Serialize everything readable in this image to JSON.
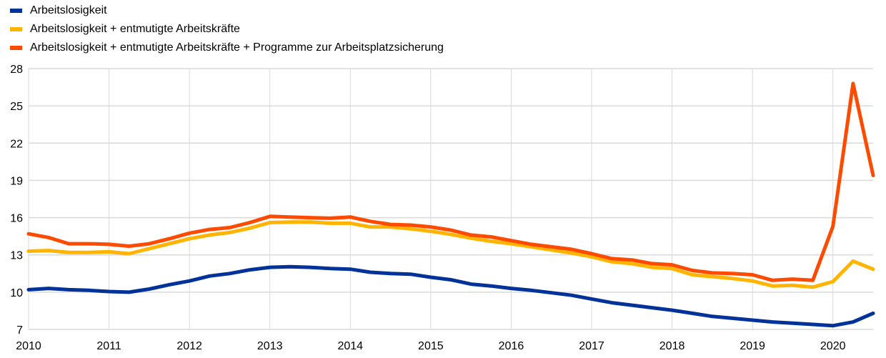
{
  "chart_data": {
    "type": "line",
    "title": "",
    "xlabel": "",
    "ylabel": "",
    "x_start": 2010,
    "x_step_years": 0.25,
    "xlim": [
      2010,
      2020.5
    ],
    "ylim": [
      7,
      28
    ],
    "x_ticks": [
      "2010",
      "2011",
      "2012",
      "2013",
      "2014",
      "2015",
      "2016",
      "2017",
      "2018",
      "2019",
      "2020"
    ],
    "y_ticks": [
      "7",
      "10",
      "13",
      "16",
      "19",
      "22",
      "25",
      "28"
    ],
    "grid": true,
    "legend_position": "top-left",
    "series": [
      {
        "name": "Arbeitslosigkeit",
        "color": "#003299",
        "values": [
          10.2,
          10.3,
          10.2,
          10.15,
          10.05,
          10.0,
          10.25,
          10.6,
          10.9,
          11.3,
          11.5,
          11.8,
          12.0,
          12.05,
          12.0,
          11.9,
          11.85,
          11.6,
          11.5,
          11.45,
          11.2,
          11.0,
          10.65,
          10.5,
          10.3,
          10.15,
          9.95,
          9.75,
          9.45,
          9.15,
          8.95,
          8.75,
          8.55,
          8.3,
          8.05,
          7.9,
          7.75,
          7.6,
          7.5,
          7.4,
          7.3,
          7.6,
          8.3
        ]
      },
      {
        "name": "Arbeitslosigkeit + entmutigte Arbeitskräfte",
        "color": "#FFB400",
        "values": [
          13.3,
          13.35,
          13.2,
          13.2,
          13.25,
          13.1,
          13.5,
          13.9,
          14.3,
          14.6,
          14.8,
          15.15,
          15.6,
          15.65,
          15.65,
          15.55,
          15.55,
          15.25,
          15.25,
          15.1,
          14.9,
          14.65,
          14.35,
          14.1,
          13.9,
          13.65,
          13.4,
          13.15,
          12.85,
          12.45,
          12.3,
          12.0,
          11.9,
          11.4,
          11.25,
          11.1,
          10.9,
          10.5,
          10.55,
          10.4,
          10.85,
          12.5,
          11.85
        ]
      },
      {
        "name": "Arbeitslosigkeit + entmutigte Arbeitskräfte + Programme zur Arbeitsplatzsicherung",
        "color": "#FF4B00",
        "values": [
          14.7,
          14.4,
          13.9,
          13.9,
          13.85,
          13.7,
          13.9,
          14.3,
          14.75,
          15.05,
          15.2,
          15.6,
          16.1,
          16.05,
          16.0,
          15.95,
          16.05,
          15.7,
          15.45,
          15.4,
          15.25,
          15.0,
          14.6,
          14.45,
          14.15,
          13.85,
          13.65,
          13.45,
          13.1,
          12.7,
          12.6,
          12.3,
          12.2,
          11.75,
          11.55,
          11.5,
          11.4,
          10.95,
          11.05,
          10.95,
          15.3,
          26.8,
          19.4
        ]
      }
    ]
  }
}
